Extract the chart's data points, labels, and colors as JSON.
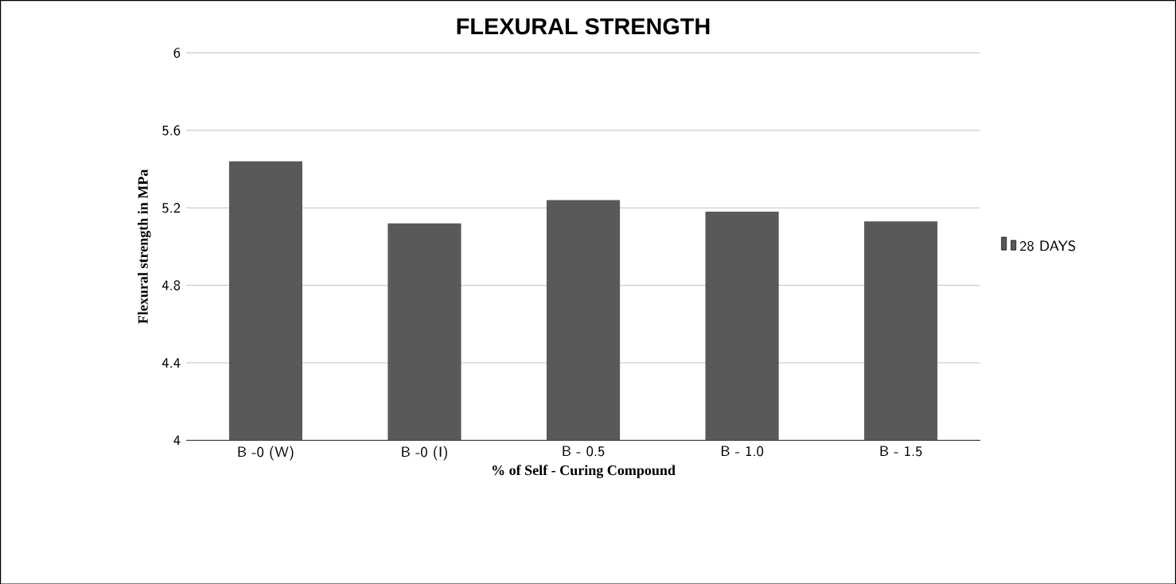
{
  "chart_data": {
    "type": "bar",
    "title": "FLEXURAL  STRENGTH",
    "xlabel": "% of Self - Curing Compound",
    "ylabel": "Flexural  strength in MPa",
    "categories": [
      "B -0 (W)",
      "B -0 (I)",
      "B - 0.5",
      "B - 1.0",
      "B - 1.5"
    ],
    "series": [
      {
        "name": "28 DAYS",
        "color": "#595959",
        "values": [
          5.44,
          5.12,
          5.24,
          5.18,
          5.13
        ]
      }
    ],
    "ylim": [
      4,
      6
    ],
    "yticks": [
      4,
      4.4,
      4.8,
      5.2,
      5.6,
      6
    ],
    "grid": "y",
    "legend": "right"
  }
}
